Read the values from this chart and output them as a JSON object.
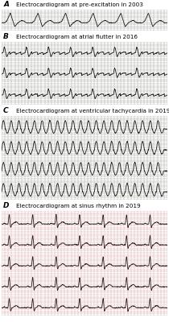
{
  "panels": [
    {
      "label": "A",
      "title": "Electrocardiogram at pre-excitation in 2003",
      "ecg_type": "pre_excitation",
      "rows": 1
    },
    {
      "label": "B",
      "title": "Electrocardiogram at atrial flutter in 2016",
      "ecg_type": "atrial_flutter",
      "rows": 3
    },
    {
      "label": "C",
      "title": "Electrocardiogram at ventricular tachycardia in 2019",
      "ecg_type": "ventricular_tachycardia",
      "rows": 4
    },
    {
      "label": "D",
      "title": "Electrocardiogram at sinus rhythm in 2019",
      "ecg_type": "sinus_rhythm",
      "rows": 5
    }
  ],
  "background_color_ab": "#e8e0d8",
  "background_color_cd": "#f0ddd8",
  "grid_color_ab": "#888880",
  "grid_color_cd": "#d09090",
  "ecg_color_ab": "#1a1a1a",
  "ecg_color_cd": "#2a1a1a",
  "label_color": "#000000",
  "title_fontsize": 5.2,
  "label_fontsize": 6.5,
  "figwidth": 2.1,
  "figheight": 4.0,
  "dpi": 100
}
